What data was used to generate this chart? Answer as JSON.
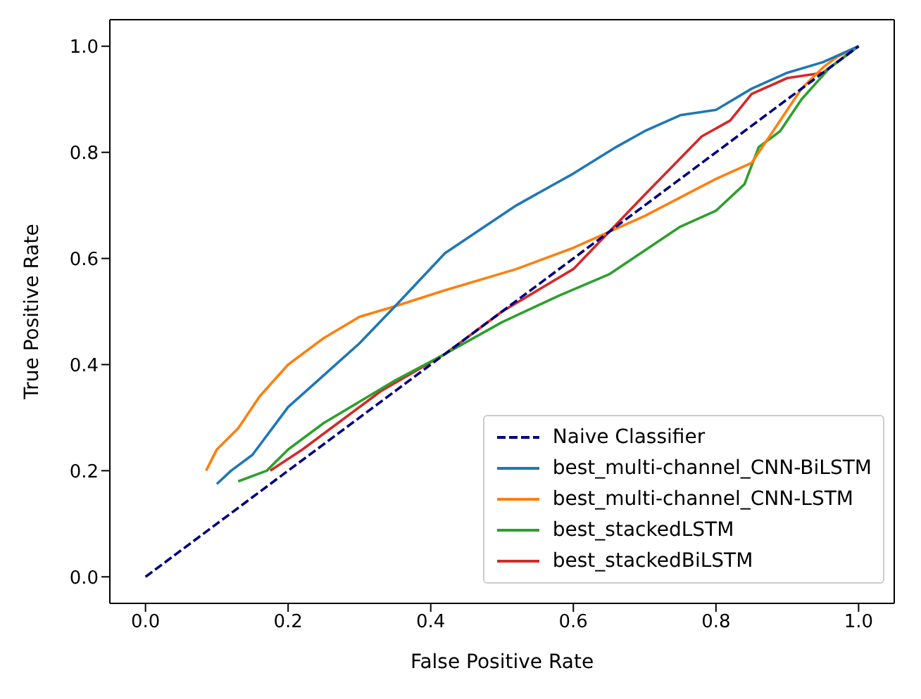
{
  "chart_data": {
    "type": "line",
    "xlabel": "False Positive Rate",
    "ylabel": "True Positive Rate",
    "xlim": [
      -0.05,
      1.05
    ],
    "ylim": [
      -0.05,
      1.05
    ],
    "xticks": [
      {
        "value": 0,
        "label": "0.0"
      },
      {
        "value": 0.2,
        "label": "0.2"
      },
      {
        "value": 0.4,
        "label": "0.4"
      },
      {
        "value": 0.6,
        "label": "0.6"
      },
      {
        "value": 0.8,
        "label": "0.8"
      },
      {
        "value": 1,
        "label": "1.0"
      }
    ],
    "yticks": [
      {
        "value": 0,
        "label": "0.0"
      },
      {
        "value": 0.2,
        "label": "0.2"
      },
      {
        "value": 0.4,
        "label": "0.4"
      },
      {
        "value": 0.6,
        "label": "0.6"
      },
      {
        "value": 0.8,
        "label": "0.8"
      },
      {
        "value": 1,
        "label": "1.0"
      }
    ],
    "grid": false,
    "legend": "bottom right",
    "marker": "none",
    "series": [
      {
        "name": "Naive Classifier",
        "color": "#000080",
        "line_style": "dashed",
        "x": [
          0,
          1
        ],
        "values": [
          0,
          1
        ]
      },
      {
        "name": "best_multi-channel_CNN-BiLSTM",
        "color": "#1f77b4",
        "line_style": "solid",
        "x": [
          0.1,
          0.12,
          0.15,
          0.2,
          0.25,
          0.3,
          0.35,
          0.42,
          0.52,
          0.6,
          0.66,
          0.7,
          0.75,
          0.8,
          0.85,
          0.9,
          0.95,
          1
        ],
        "values": [
          0.175,
          0.2,
          0.23,
          0.32,
          0.38,
          0.44,
          0.51,
          0.61,
          0.7,
          0.76,
          0.81,
          0.84,
          0.87,
          0.88,
          0.92,
          0.95,
          0.97,
          1
        ]
      },
      {
        "name": "best_multi-channel_CNN-LSTM",
        "color": "#ff7f0e",
        "line_style": "solid",
        "x": [
          0.085,
          0.1,
          0.13,
          0.16,
          0.2,
          0.25,
          0.3,
          0.35,
          0.42,
          0.52,
          0.6,
          0.7,
          0.8,
          0.85,
          0.88,
          0.92,
          0.95,
          0.97,
          1
        ],
        "values": [
          0.2,
          0.24,
          0.28,
          0.34,
          0.4,
          0.45,
          0.49,
          0.51,
          0.54,
          0.58,
          0.62,
          0.68,
          0.75,
          0.78,
          0.84,
          0.92,
          0.96,
          0.98,
          1
        ]
      },
      {
        "name": "best_stackedLSTM",
        "color": "#2ca02c",
        "line_style": "solid",
        "x": [
          0.13,
          0.17,
          0.2,
          0.25,
          0.3,
          0.35,
          0.42,
          0.5,
          0.58,
          0.65,
          0.75,
          0.8,
          0.84,
          0.86,
          0.89,
          0.92,
          0.96,
          1
        ],
        "values": [
          0.18,
          0.2,
          0.24,
          0.29,
          0.33,
          0.37,
          0.42,
          0.48,
          0.53,
          0.57,
          0.66,
          0.69,
          0.74,
          0.81,
          0.84,
          0.9,
          0.96,
          1
        ]
      },
      {
        "name": "best_stackedBiLSTM",
        "color": "#d62728",
        "line_style": "solid",
        "x": [
          0.175,
          0.22,
          0.27,
          0.33,
          0.42,
          0.5,
          0.55,
          0.6,
          0.7,
          0.78,
          0.82,
          0.85,
          0.9,
          0.95,
          1
        ],
        "values": [
          0.2,
          0.24,
          0.29,
          0.35,
          0.42,
          0.5,
          0.54,
          0.58,
          0.72,
          0.83,
          0.86,
          0.91,
          0.94,
          0.95,
          1
        ]
      }
    ]
  }
}
